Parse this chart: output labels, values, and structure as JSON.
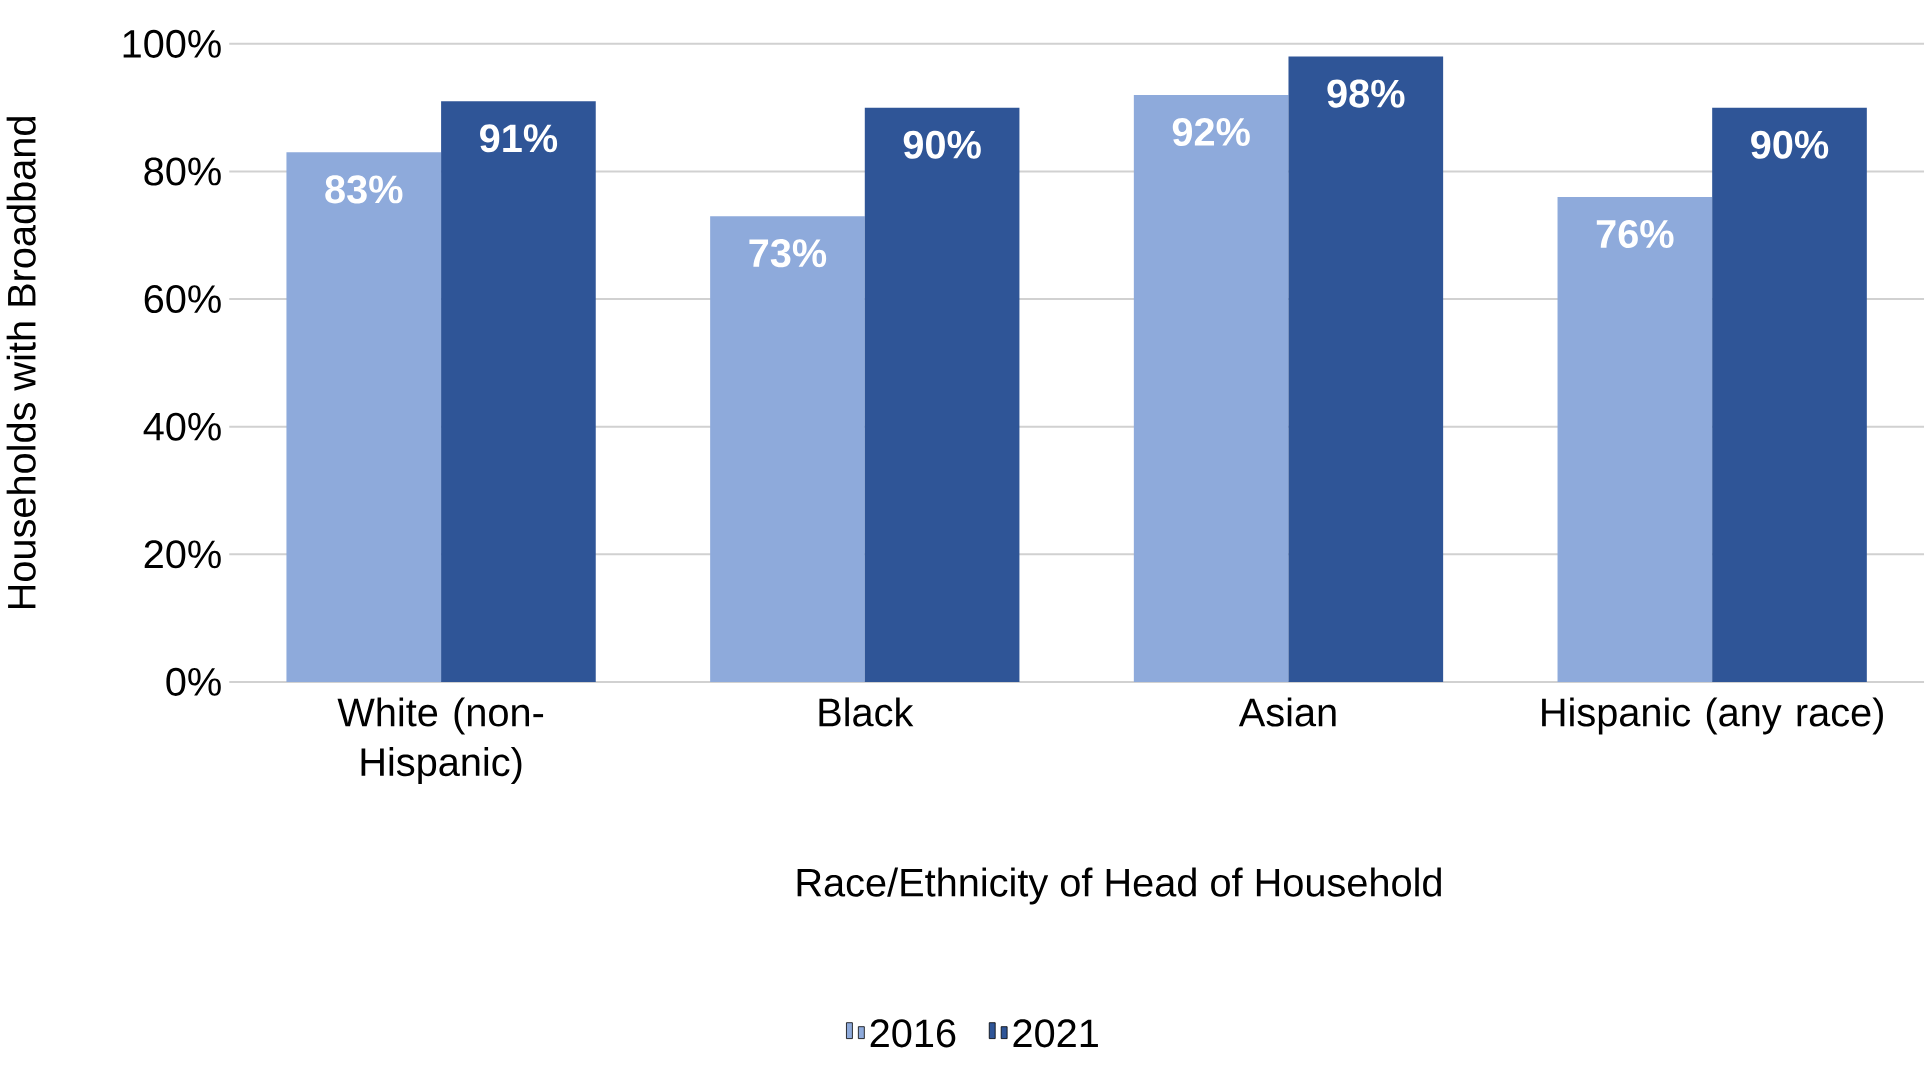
{
  "chart_data": {
    "type": "bar",
    "xlabel": "Race/Ethnicity of Head of Household",
    "ylabel": "Households with Broadband",
    "categories": [
      "White (non-Hispanic)",
      "Black",
      "Asian",
      "Hispanic (any race)"
    ],
    "series": [
      {
        "name": "2016",
        "color": "#8eaadb",
        "values": [
          83,
          73,
          92,
          76
        ],
        "value_labels": [
          "83%",
          "73%",
          "92%",
          "76%"
        ]
      },
      {
        "name": "2021",
        "color": "#2f5597",
        "values": [
          91,
          90,
          98,
          90
        ],
        "value_labels": [
          "91%",
          "90%",
          "98%",
          "90%"
        ]
      }
    ],
    "ylim": [
      0,
      100
    ],
    "yticks": [
      {
        "value": 0,
        "label": "0%"
      },
      {
        "value": 20,
        "label": "20%"
      },
      {
        "value": 40,
        "label": "40%"
      },
      {
        "value": 60,
        "label": "60%"
      },
      {
        "value": 80,
        "label": "80%"
      },
      {
        "value": 100,
        "label": "100%"
      }
    ],
    "grid": "y",
    "legend": "bottom"
  }
}
